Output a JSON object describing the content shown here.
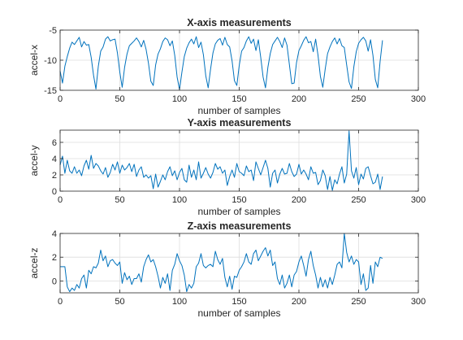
{
  "chart_data": [
    {
      "type": "line",
      "title": "X-axis measurements",
      "xlabel": "number of samples",
      "ylabel": "accel-x",
      "xlim": [
        0,
        300
      ],
      "ylim": [
        -15,
        -5
      ],
      "xticks": [
        0,
        50,
        100,
        150,
        200,
        250,
        300
      ],
      "yticks": [
        -15,
        -10,
        -5
      ],
      "grid": true,
      "color": "#0072BD",
      "series": [
        {
          "x": [
            0,
            2,
            4,
            6,
            8,
            10,
            12,
            14,
            16,
            18,
            20,
            22,
            24,
            26,
            28,
            30,
            32,
            34,
            36,
            38,
            40,
            42,
            44,
            46,
            48,
            50,
            52,
            54,
            56,
            58,
            60,
            62,
            64,
            66,
            68,
            70,
            72,
            74,
            76,
            78,
            80,
            82,
            84,
            86,
            88,
            90,
            92,
            94,
            96,
            98,
            100,
            102,
            104,
            106,
            108,
            110,
            112,
            114,
            116,
            118,
            120,
            122,
            124,
            126,
            128,
            130,
            132,
            134,
            136,
            138,
            140,
            142,
            144,
            146,
            148,
            150,
            152,
            154,
            156,
            158,
            160,
            162,
            164,
            166,
            168,
            170,
            172,
            174,
            176,
            178,
            180,
            182,
            184,
            186,
            188,
            190,
            192,
            194,
            196,
            198,
            200,
            202,
            204,
            206,
            208,
            210,
            212,
            214,
            216,
            218,
            220,
            222,
            224,
            226,
            228,
            230,
            232,
            234,
            236,
            238,
            240,
            242,
            244,
            246,
            248,
            250,
            252,
            254,
            256,
            258,
            260,
            262,
            264,
            266,
            268,
            270
          ],
          "values": [
            -11.8,
            -13.8,
            -11,
            -9.4,
            -8,
            -7,
            -7.4,
            -6.8,
            -6.2,
            -7.8,
            -6.9,
            -7.5,
            -7.4,
            -9.5,
            -12.5,
            -14.8,
            -11,
            -8.5,
            -7.8,
            -6.5,
            -6.1,
            -6.8,
            -6.6,
            -6.5,
            -8.8,
            -12,
            -14.5,
            -11.2,
            -9,
            -7.6,
            -7.2,
            -6.8,
            -6.3,
            -6.9,
            -7.8,
            -6.7,
            -8.2,
            -10.5,
            -13.5,
            -14.2,
            -10.8,
            -9,
            -8.1,
            -6.9,
            -6.3,
            -6.6,
            -7.6,
            -6.8,
            -9.2,
            -12.8,
            -14.9,
            -12,
            -9.4,
            -8,
            -7.1,
            -6.5,
            -7.3,
            -6.1,
            -7.9,
            -7,
            -9.1,
            -12.6,
            -14.6,
            -11.5,
            -8.8,
            -7.3,
            -6.7,
            -6.4,
            -7.5,
            -6.2,
            -7.4,
            -7.8,
            -10.1,
            -13.4,
            -14.2,
            -10.9,
            -8.5,
            -7.9,
            -6.8,
            -6.1,
            -7.2,
            -6.5,
            -8.4,
            -6.6,
            -9.5,
            -12.8,
            -14.6,
            -11.2,
            -8.9,
            -7.4,
            -6.8,
            -6.2,
            -6.9,
            -7.9,
            -6.3,
            -7.5,
            -10.7,
            -13.9,
            -13.8,
            -10.4,
            -8.4,
            -7.6,
            -6.7,
            -6.1,
            -7.1,
            -6.9,
            -8.6,
            -6.5,
            -9.2,
            -12.7,
            -14.5,
            -11.5,
            -8.9,
            -7.8,
            -6.9,
            -6.3,
            -7.3,
            -6.4,
            -7.6,
            -7.9,
            -10.8,
            -13.6,
            -14.7,
            -11.1,
            -8.6,
            -7.2,
            -6.6,
            -6.2,
            -6.8,
            -8.5,
            -6.6,
            -9.2,
            -13.2,
            -14.6,
            -10.2,
            -6.7
          ]
        }
      ]
    },
    {
      "type": "line",
      "title": "Y-axis measurements",
      "xlabel": "number of samples",
      "ylabel": "accel-y",
      "xlim": [
        0,
        300
      ],
      "ylim": [
        0,
        7.5
      ],
      "xticks": [
        0,
        50,
        100,
        150,
        200,
        250,
        300
      ],
      "yticks": [
        0,
        2,
        4,
        6
      ],
      "grid": true,
      "color": "#0072BD",
      "series": [
        {
          "x": [
            0,
            2,
            4,
            6,
            8,
            10,
            12,
            14,
            16,
            18,
            20,
            22,
            24,
            26,
            28,
            30,
            32,
            34,
            36,
            38,
            40,
            42,
            44,
            46,
            48,
            50,
            52,
            54,
            56,
            58,
            60,
            62,
            64,
            66,
            68,
            70,
            72,
            74,
            76,
            78,
            80,
            82,
            84,
            86,
            88,
            90,
            92,
            94,
            96,
            98,
            100,
            102,
            104,
            106,
            108,
            110,
            112,
            114,
            116,
            118,
            120,
            122,
            124,
            126,
            128,
            130,
            132,
            134,
            136,
            138,
            140,
            142,
            144,
            146,
            148,
            150,
            152,
            154,
            156,
            158,
            160,
            162,
            164,
            166,
            168,
            170,
            172,
            174,
            176,
            178,
            180,
            182,
            184,
            186,
            188,
            190,
            192,
            194,
            196,
            198,
            200,
            202,
            204,
            206,
            208,
            210,
            212,
            214,
            216,
            218,
            220,
            222,
            224,
            226,
            228,
            230,
            232,
            234,
            236,
            238,
            240,
            242,
            244,
            246,
            248,
            250,
            252,
            254,
            256,
            258,
            260,
            262,
            264,
            266,
            268,
            270
          ],
          "values": [
            3.2,
            4.3,
            2.2,
            3.8,
            2.5,
            2.2,
            3,
            2.2,
            2.6,
            1.9,
            3.1,
            3.8,
            2.7,
            4.4,
            2.8,
            3.4,
            3.1,
            2.5,
            2.1,
            2.9,
            1.7,
            2.3,
            3.3,
            2.6,
            3.6,
            2.2,
            3.2,
            2.6,
            2.9,
            3.4,
            2.4,
            3.3,
            1.8,
            2.6,
            3,
            1.7,
            2,
            1.6,
            1.9,
            0.3,
            2.1,
            0.5,
            1.2,
            2,
            1.4,
            2.4,
            3,
            1.9,
            2.5,
            1.4,
            2.3,
            2.8,
            1.4,
            1.1,
            3.2,
            1.7,
            2.6,
            1.4,
            3.6,
            1.6,
            2.2,
            2.9,
            2.1,
            1.6,
            2.3,
            3.4,
            2.7,
            3,
            2.2,
            2.6,
            0.7,
            1.8,
            2.6,
            1.7,
            3.4,
            2.4,
            2.2,
            1.9,
            3.1,
            2.4,
            2.6,
            1.3,
            3.6,
            2.8,
            2,
            2.9,
            3.8,
            2.8,
            0.5,
            2.2,
            2.6,
            1,
            2.1,
            2.8,
            2.1,
            2.2,
            3.4,
            2.4,
            1.8,
            2.1,
            3.3,
            2.1,
            2.6,
            2.1,
            1.4,
            3,
            2.2,
            2.3,
            0.8,
            1.3,
            2.6,
            1.9,
            0.2,
            1.8,
            0.1,
            1.4,
            0.9,
            2.1,
            3,
            1,
            2.1,
            7.4,
            2.5,
            1.6,
            2.9,
            0.8,
            2.1,
            1.5,
            2.8,
            3,
            1.9,
            0.9,
            1.1,
            2.1,
            0.2,
            1.8
          ]
        }
      ]
    },
    {
      "type": "line",
      "title": "Z-axis measurements",
      "xlabel": "number of samples",
      "ylabel": "accel-z",
      "xlim": [
        0,
        300
      ],
      "ylim": [
        -1,
        4
      ],
      "xticks": [
        0,
        50,
        100,
        150,
        200,
        250,
        300
      ],
      "yticks": [
        0,
        2,
        4
      ],
      "grid": true,
      "color": "#0072BD",
      "series": [
        {
          "x": [
            0,
            2,
            4,
            6,
            8,
            10,
            12,
            14,
            16,
            18,
            20,
            22,
            24,
            26,
            28,
            30,
            32,
            34,
            36,
            38,
            40,
            42,
            44,
            46,
            48,
            50,
            52,
            54,
            56,
            58,
            60,
            62,
            64,
            66,
            68,
            70,
            72,
            74,
            76,
            78,
            80,
            82,
            84,
            86,
            88,
            90,
            92,
            94,
            96,
            98,
            100,
            102,
            104,
            106,
            108,
            110,
            112,
            114,
            116,
            118,
            120,
            122,
            124,
            126,
            128,
            130,
            132,
            134,
            136,
            138,
            140,
            142,
            144,
            146,
            148,
            150,
            152,
            154,
            156,
            158,
            160,
            162,
            164,
            166,
            168,
            170,
            172,
            174,
            176,
            178,
            180,
            182,
            184,
            186,
            188,
            190,
            192,
            194,
            196,
            198,
            200,
            202,
            204,
            206,
            208,
            210,
            212,
            214,
            216,
            218,
            220,
            222,
            224,
            226,
            228,
            230,
            232,
            234,
            236,
            238,
            240,
            242,
            244,
            246,
            248,
            250,
            252,
            254,
            256,
            258,
            260,
            262,
            264,
            266,
            268,
            270
          ],
          "values": [
            1.2,
            1.2,
            1.2,
            -0.5,
            -0.9,
            -0.6,
            -0.8,
            -0.3,
            -0.6,
            0.2,
            0.5,
            -0.6,
            0.9,
            0.6,
            1.2,
            1.1,
            1.5,
            2.6,
            1.7,
            2.1,
            1.2,
            1.7,
            1.8,
            1.5,
            1.3,
            1.6,
            -0.2,
            0.7,
            0.1,
            0.4,
            -0.3,
            0.2,
            0.2,
            0.6,
            -0.1,
            1.2,
            1.8,
            2.2,
            1.6,
            1.8,
            1.2,
            0.4,
            -0.6,
            0.3,
            -0.2,
            0.6,
            -0.8,
            0.9,
            1.4,
            2.3,
            1.7,
            1.3,
            0.5,
            -0.9,
            -0.3,
            -0.6,
            -0.2,
            1.2,
            1.5,
            2.3,
            1.3,
            1.1,
            1.3,
            1.4,
            1.2,
            2.5,
            1.8,
            1.4,
            1.9,
            0.3,
            -0.5,
            0.4,
            -0.7,
            0.4,
            0.3,
            0.9,
            1.2,
            1.6,
            2.3,
            1.6,
            1.4,
            2.3,
            2.6,
            1.7,
            2.1,
            2.5,
            2.8,
            2.1,
            2.6,
            1.3,
            1.6,
            0.2,
            -0.3,
            0.5,
            -0.6,
            -0.2,
            0.5,
            -0.5,
            0.5,
            0.8,
            1.6,
            2.1,
            1.3,
            0.4,
            1.8,
            2.5,
            1.3,
            0.5,
            -0.6,
            0.3,
            -0.5,
            0.1,
            -0.6,
            0.3,
            -0.3,
            0.5,
            1.4,
            1.6,
            1.1,
            4,
            2.4,
            1.6,
            2.1,
            1.4,
            1.8,
            1.6,
            -0.3,
            0.6,
            -0.8,
            -0.6,
            1.3,
            -0.2,
            1.6,
            1.2,
            2,
            1.9
          ]
        }
      ]
    }
  ]
}
